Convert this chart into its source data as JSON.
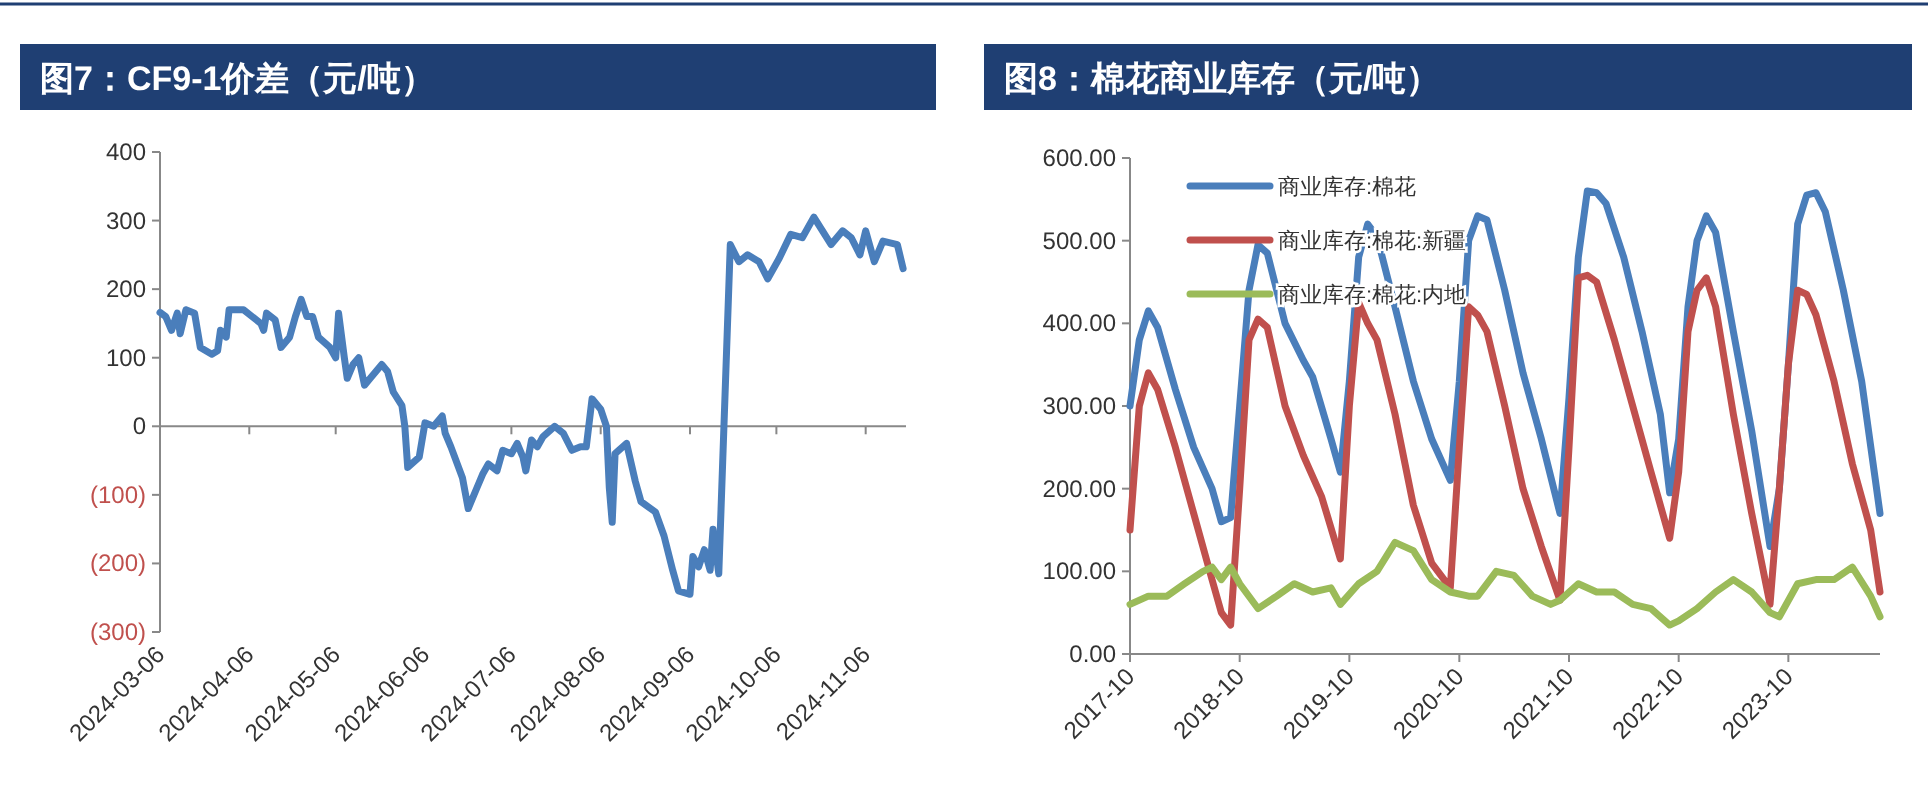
{
  "chart_data": [
    {
      "type": "line",
      "title": "图7：CF9-1价差（元/吨）",
      "xlim": [
        "2024-03-06",
        "2024-11-20"
      ],
      "xticks": [
        "2024-03-06",
        "2024-04-06",
        "2024-05-06",
        "2024-06-06",
        "2024-07-06",
        "2024-08-06",
        "2024-09-06",
        "2024-10-06",
        "2024-11-06"
      ],
      "ylim": [
        -300,
        400
      ],
      "yticks": [
        400,
        300,
        200,
        100,
        0,
        {
          "value": -100,
          "label": "(100)"
        },
        {
          "value": -200,
          "label": "(200)"
        },
        {
          "value": -300,
          "label": "(300)"
        }
      ],
      "grid": false,
      "legend": false,
      "marker": "none",
      "line_style": "solid",
      "ref_lines": [
        {
          "axis": "y",
          "value": 0,
          "color": "#888888"
        }
      ],
      "series": [
        {
          "color": "#4a7ebb",
          "x": [
            "2024-03-06",
            "2024-03-08",
            "2024-03-10",
            "2024-03-12",
            "2024-03-13",
            "2024-03-15",
            "2024-03-18",
            "2024-03-20",
            "2024-03-24",
            "2024-03-26",
            "2024-03-27",
            "2024-03-29",
            "2024-03-30",
            "2024-04-04",
            "2024-04-10",
            "2024-04-11",
            "2024-04-12",
            "2024-04-15",
            "2024-04-17",
            "2024-04-20",
            "2024-04-22",
            "2024-04-24",
            "2024-04-26",
            "2024-04-28",
            "2024-04-30",
            "2024-05-04",
            "2024-05-06",
            "2024-05-07",
            "2024-05-09",
            "2024-05-10",
            "2024-05-12",
            "2024-05-14",
            "2024-05-16",
            "2024-05-18",
            "2024-05-22",
            "2024-05-24",
            "2024-05-26",
            "2024-05-29",
            "2024-05-30",
            "2024-05-31",
            "2024-06-04",
            "2024-06-06",
            "2024-06-09",
            "2024-06-12",
            "2024-06-13",
            "2024-06-15",
            "2024-06-19",
            "2024-06-21",
            "2024-06-24",
            "2024-06-26",
            "2024-06-28",
            "2024-07-01",
            "2024-07-03",
            "2024-07-06",
            "2024-07-08",
            "2024-07-10",
            "2024-07-11",
            "2024-07-13",
            "2024-07-15",
            "2024-07-17",
            "2024-07-21",
            "2024-07-24",
            "2024-07-27",
            "2024-07-30",
            "2024-08-01",
            "2024-08-03",
            "2024-08-06",
            "2024-08-08",
            "2024-08-09",
            "2024-08-10",
            "2024-08-11",
            "2024-08-15",
            "2024-08-18",
            "2024-08-20",
            "2024-08-25",
            "2024-08-28",
            "2024-08-31",
            "2024-09-02",
            "2024-09-06",
            "2024-09-07",
            "2024-09-09",
            "2024-09-11",
            "2024-09-13",
            "2024-09-14",
            "2024-09-16",
            "2024-09-20",
            "2024-09-23",
            "2024-09-26",
            "2024-09-30",
            "2024-10-03",
            "2024-10-07",
            "2024-10-11",
            "2024-10-15",
            "2024-10-19",
            "2024-10-22",
            "2024-10-25",
            "2024-10-29",
            "2024-11-01",
            "2024-11-04",
            "2024-11-06",
            "2024-11-09",
            "2024-11-12",
            "2024-11-17",
            "2024-11-19"
          ],
          "values": [
            166,
            160,
            140,
            165,
            135,
            170,
            165,
            115,
            105,
            110,
            140,
            130,
            170,
            170,
            150,
            140,
            165,
            155,
            115,
            130,
            160,
            185,
            160,
            160,
            130,
            115,
            100,
            165,
            100,
            70,
            90,
            100,
            60,
            70,
            90,
            80,
            50,
            30,
            0,
            -60,
            -45,
            5,
            0,
            15,
            -10,
            -30,
            -75,
            -120,
            -90,
            -70,
            -55,
            -65,
            -35,
            -40,
            -25,
            -45,
            -65,
            -20,
            -30,
            -15,
            0,
            -10,
            -35,
            -30,
            -30,
            40,
            25,
            0,
            -90,
            -140,
            -40,
            -25,
            -80,
            -110,
            -125,
            -160,
            -210,
            -240,
            -245,
            -190,
            -205,
            -180,
            -210,
            -150,
            -215,
            265,
            240,
            250,
            240,
            215,
            245,
            280,
            275,
            305,
            285,
            265,
            285,
            275,
            250,
            285,
            240,
            270,
            265,
            230
          ]
        }
      ]
    },
    {
      "type": "line",
      "title": "图8：棉花商业库存（元/吨）",
      "xlim": [
        "2017-10",
        "2024-08"
      ],
      "xticks": [
        "2017-10",
        "2018-10",
        "2019-10",
        "2020-10",
        "2021-10",
        "2022-10",
        "2023-10"
      ],
      "ylim": [
        0,
        600
      ],
      "yticks": [
        {
          "value": 0,
          "label": "0.00"
        },
        {
          "value": 100,
          "label": "100.00"
        },
        {
          "value": 200,
          "label": "200.00"
        },
        {
          "value": 300,
          "label": "300.00"
        },
        {
          "value": 400,
          "label": "400.00"
        },
        {
          "value": 500,
          "label": "500.00"
        },
        {
          "value": 600,
          "label": "600.00"
        }
      ],
      "grid": false,
      "legend": "top left",
      "marker": "none",
      "line_style": "solid",
      "series": [
        {
          "name": "商业库存:棉花",
          "color": "#4a7ebb",
          "x": [
            "2017-10",
            "2017-11",
            "2017-12",
            "2018-01",
            "2018-03",
            "2018-05",
            "2018-07",
            "2018-08",
            "2018-09",
            "2018-10",
            "2018-11",
            "2018-12",
            "2019-01",
            "2019-03",
            "2019-05",
            "2019-06",
            "2019-08",
            "2019-09",
            "2019-10",
            "2019-11",
            "2019-12",
            "2020-01",
            "2020-03",
            "2020-05",
            "2020-07",
            "2020-09",
            "2020-10",
            "2020-11",
            "2020-12",
            "2021-01",
            "2021-03",
            "2021-05",
            "2021-07",
            "2021-09",
            "2021-10",
            "2021-11",
            "2021-12",
            "2022-01",
            "2022-02",
            "2022-04",
            "2022-06",
            "2022-08",
            "2022-09",
            "2022-10",
            "2022-11",
            "2022-12",
            "2023-01",
            "2023-02",
            "2023-04",
            "2023-06",
            "2023-08",
            "2023-09",
            "2023-10",
            "2023-11",
            "2023-12",
            "2024-01",
            "2024-02",
            "2024-04",
            "2024-06",
            "2024-08"
          ],
          "values": [
            300,
            380,
            415,
            395,
            320,
            250,
            200,
            160,
            165,
            300,
            440,
            495,
            485,
            400,
            355,
            335,
            260,
            220,
            330,
            480,
            520,
            505,
            420,
            330,
            260,
            210,
            330,
            500,
            530,
            525,
            440,
            340,
            260,
            170,
            310,
            480,
            560,
            558,
            545,
            480,
            390,
            290,
            195,
            260,
            420,
            500,
            530,
            510,
            390,
            270,
            130,
            200,
            350,
            520,
            555,
            558,
            535,
            440,
            330,
            170
          ]
        },
        {
          "name": "商业库存:棉花:新疆",
          "color": "#c0504d",
          "x": [
            "2017-10",
            "2017-11",
            "2017-12",
            "2018-01",
            "2018-03",
            "2018-05",
            "2018-07",
            "2018-08",
            "2018-09",
            "2018-10",
            "2018-11",
            "2018-12",
            "2019-01",
            "2019-03",
            "2019-05",
            "2019-07",
            "2019-09",
            "2019-10",
            "2019-11",
            "2019-12",
            "2020-01",
            "2020-03",
            "2020-05",
            "2020-07",
            "2020-09",
            "2020-10",
            "2020-11",
            "2020-12",
            "2021-01",
            "2021-03",
            "2021-05",
            "2021-07",
            "2021-09",
            "2021-10",
            "2021-11",
            "2021-12",
            "2022-01",
            "2022-03",
            "2022-05",
            "2022-07",
            "2022-09",
            "2022-10",
            "2022-11",
            "2022-12",
            "2023-01",
            "2023-02",
            "2023-04",
            "2023-06",
            "2023-08",
            "2023-09",
            "2023-10",
            "2023-11",
            "2023-12",
            "2024-01",
            "2024-03",
            "2024-05",
            "2024-07",
            "2024-08"
          ],
          "values": [
            150,
            300,
            340,
            320,
            250,
            170,
            90,
            50,
            35,
            200,
            380,
            405,
            395,
            300,
            240,
            190,
            115,
            300,
            425,
            400,
            380,
            290,
            180,
            110,
            80,
            250,
            420,
            410,
            390,
            300,
            200,
            130,
            65,
            250,
            455,
            458,
            450,
            380,
            300,
            220,
            140,
            220,
            390,
            440,
            455,
            420,
            290,
            170,
            60,
            200,
            350,
            440,
            435,
            410,
            330,
            230,
            150,
            75
          ]
        },
        {
          "name": "商业库存:棉花:内地",
          "color": "#9bbb59",
          "x": [
            "2017-10",
            "2017-12",
            "2018-02",
            "2018-04",
            "2018-06",
            "2018-07",
            "2018-08",
            "2018-09",
            "2018-10",
            "2018-12",
            "2019-02",
            "2019-04",
            "2019-06",
            "2019-08",
            "2019-09",
            "2019-11",
            "2020-01",
            "2020-03",
            "2020-05",
            "2020-07",
            "2020-09",
            "2020-11",
            "2020-12",
            "2021-02",
            "2021-04",
            "2021-06",
            "2021-08",
            "2021-09",
            "2021-11",
            "2022-01",
            "2022-03",
            "2022-05",
            "2022-07",
            "2022-09",
            "2022-10",
            "2022-12",
            "2023-02",
            "2023-04",
            "2023-06",
            "2023-08",
            "2023-09",
            "2023-11",
            "2024-01",
            "2024-03",
            "2024-05",
            "2024-07",
            "2024-08"
          ],
          "values": [
            60,
            70,
            70,
            85,
            100,
            105,
            90,
            105,
            85,
            55,
            70,
            85,
            75,
            80,
            60,
            85,
            100,
            135,
            125,
            90,
            75,
            70,
            70,
            100,
            95,
            70,
            60,
            65,
            85,
            75,
            75,
            60,
            55,
            35,
            40,
            55,
            75,
            90,
            75,
            50,
            45,
            85,
            90,
            90,
            105,
            70,
            45
          ]
        }
      ]
    }
  ]
}
